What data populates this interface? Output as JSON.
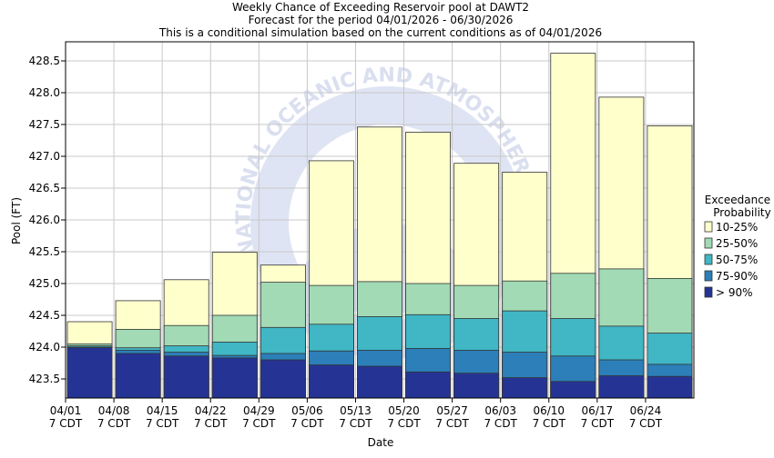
{
  "chart_data": {
    "type": "bar",
    "title_lines": [
      "Weekly Chance of Exceeding Reservoir pool at DAWT2",
      "Forecast for the period 04/01/2026 - 06/30/2026",
      "This is a conditional simulation based on the current conditions as of 04/01/2026"
    ],
    "xlabel": "Date",
    "ylabel": "Pool (FT)",
    "ylim": [
      423.2,
      428.8
    ],
    "y_ticks": [
      423.5,
      424.0,
      424.5,
      425.0,
      425.5,
      426.0,
      426.5,
      427.0,
      427.5,
      428.0,
      428.5
    ],
    "y_tick_labels": [
      "423.5",
      "424.0",
      "424.5",
      "425.0",
      "425.5",
      "426.0",
      "426.5",
      "427.0",
      "427.5",
      "428.0",
      "428.5"
    ],
    "x_tick_labels": [
      [
        "04/01",
        "7 CDT"
      ],
      [
        "04/08",
        "7 CDT"
      ],
      [
        "04/15",
        "7 CDT"
      ],
      [
        "04/22",
        "7 CDT"
      ],
      [
        "04/29",
        "7 CDT"
      ],
      [
        "05/06",
        "7 CDT"
      ],
      [
        "05/13",
        "7 CDT"
      ],
      [
        "05/20",
        "7 CDT"
      ],
      [
        "05/27",
        "7 CDT"
      ],
      [
        "06/03",
        "7 CDT"
      ],
      [
        "06/10",
        "7 CDT"
      ],
      [
        "06/17",
        "7 CDT"
      ],
      [
        "06/24",
        "7 CDT"
      ]
    ],
    "legend": {
      "title": [
        "Exceedance",
        "Probability"
      ],
      "entries": [
        "10-25%",
        "25-50%",
        "50-75%",
        "75-90%",
        "> 90%"
      ],
      "colors": [
        "#ffffcc",
        "#a1dab4",
        "#41b6c4",
        "#2c7fb8",
        "#253494"
      ],
      "placement": "right"
    },
    "weeks": 13,
    "series": [
      {
        "name": "> 90%",
        "values": [
          423.99,
          423.9,
          423.86,
          423.83,
          423.8,
          423.72,
          423.7,
          423.61,
          423.59,
          423.52,
          423.46,
          423.55,
          423.54
        ]
      },
      {
        "name": "75-90%",
        "values": [
          424.0,
          423.95,
          423.92,
          423.87,
          423.9,
          423.94,
          423.95,
          423.98,
          423.95,
          423.92,
          423.86,
          423.8,
          423.73
        ]
      },
      {
        "name": "50-75%",
        "values": [
          424.02,
          423.99,
          424.02,
          424.08,
          424.31,
          424.36,
          424.48,
          424.51,
          424.45,
          424.57,
          424.45,
          424.33,
          424.22
        ]
      },
      {
        "name": "25-50%",
        "values": [
          424.05,
          424.28,
          424.34,
          424.5,
          425.02,
          424.97,
          425.03,
          425.0,
          424.97,
          425.04,
          425.16,
          425.23,
          425.08
        ]
      },
      {
        "name": "10-25%",
        "values": [
          424.4,
          424.73,
          425.06,
          425.49,
          425.29,
          426.93,
          427.46,
          427.38,
          426.89,
          426.75,
          428.62,
          427.93,
          427.48
        ]
      }
    ],
    "watermark": "NATIONAL OCEANIC AND ATMOSPHERIC ADMINISTRATION"
  }
}
